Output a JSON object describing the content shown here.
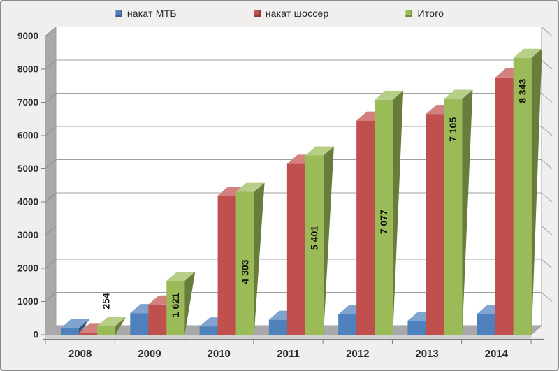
{
  "legend": {
    "items": [
      {
        "label": "накат МТБ",
        "color": "#4F81BD"
      },
      {
        "label": "накат шоссер",
        "color": "#C0504D"
      },
      {
        "label": "Итого",
        "color": "#9BBB59"
      }
    ]
  },
  "chart_data": {
    "type": "bar",
    "style": "3d-clustered",
    "title": "",
    "xlabel": "",
    "ylabel": "",
    "categories": [
      "2008",
      "2009",
      "2010",
      "2011",
      "2012",
      "2013",
      "2014"
    ],
    "series": [
      {
        "name": "накат МТБ",
        "color": "#4F81BD",
        "values": [
          200,
          650,
          250,
          450,
          610,
          420,
          630
        ]
      },
      {
        "name": "накат шоссер",
        "color": "#C0504D",
        "values": [
          54,
          910,
          4190,
          5150,
          6450,
          6650,
          7750
        ]
      },
      {
        "name": "Итого",
        "color": "#9BBB59",
        "values": [
          254,
          1621,
          4303,
          5401,
          7077,
          7105,
          8343
        ],
        "data_labels": [
          "254",
          "1 621",
          "4 303",
          "5 401",
          "7 077",
          "7 105",
          "8 343"
        ]
      }
    ],
    "ylim": [
      0,
      9000
    ],
    "ytick_step": 1000,
    "yticks": [
      "0",
      "1000",
      "2000",
      "3000",
      "4000",
      "5000",
      "6000",
      "7000",
      "8000",
      "9000"
    ],
    "grid": true,
    "legend_position": "top"
  },
  "colors": {
    "frame_background": "#F0EFED",
    "frame_border": "#8A8A8A",
    "back_wall": "#FFFFFF",
    "side_wall": "#A9A9A9",
    "wall_line": "#8E8E8E",
    "floor_front": "#D2D1CF",
    "gridline": "#A0A0A0",
    "axis_line": "#808080",
    "axis_text": "#2B2B2B",
    "data_label_text": "#111111"
  }
}
